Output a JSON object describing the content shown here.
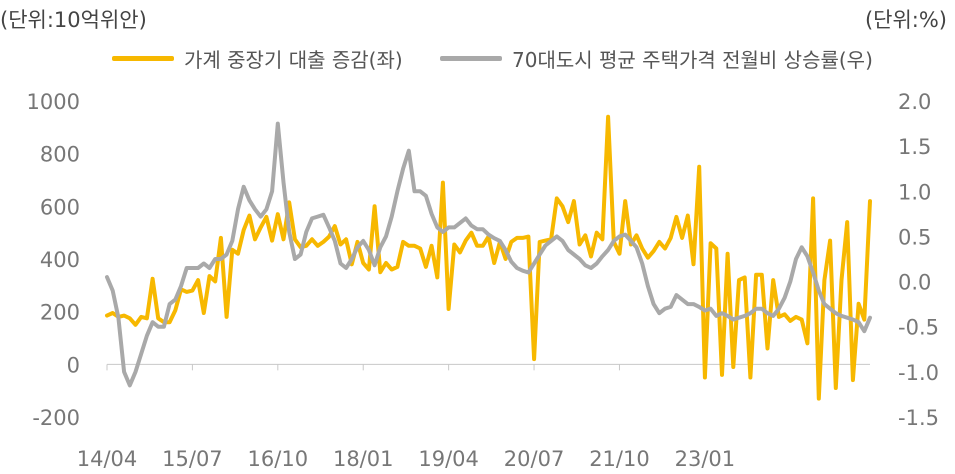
{
  "chart_data": {
    "type": "line",
    "unit_left": "(단위:10억위안)",
    "unit_right": "(단위:%)",
    "x_tick_labels": [
      "14/04",
      "15/07",
      "16/10",
      "18/01",
      "19/04",
      "20/07",
      "21/10",
      "23/01"
    ],
    "y_left": {
      "min": -200,
      "max": 1000,
      "ticks": [
        -200,
        0,
        200,
        400,
        600,
        800,
        1000
      ],
      "tick_labels": [
        "-200",
        "0",
        "200",
        "400",
        "600",
        "800",
        "1000"
      ]
    },
    "y_right": {
      "min": -1.5,
      "max": 2.0,
      "ticks": [
        -1.5,
        -1.0,
        -0.5,
        0.0,
        0.5,
        1.0,
        1.5,
        2.0
      ],
      "tick_labels": [
        "-1.5",
        "-1.0",
        "-0.5",
        "0.0",
        "0.5",
        "1.0",
        "1.5",
        "2.0"
      ]
    },
    "grid": false,
    "legend_position": "top",
    "series": [
      {
        "name": "가계 중장기 대출 증감(좌)",
        "axis": "left",
        "color": "#F7B800",
        "start": "2014-04",
        "values": [
          185,
          195,
          180,
          185,
          175,
          150,
          180,
          175,
          325,
          175,
          160,
          160,
          205,
          285,
          275,
          280,
          320,
          195,
          335,
          315,
          480,
          180,
          435,
          420,
          510,
          565,
          475,
          520,
          560,
          470,
          570,
          475,
          615,
          475,
          445,
          450,
          475,
          450,
          465,
          485,
          525,
          455,
          475,
          380,
          465,
          385,
          360,
          600,
          350,
          385,
          360,
          370,
          465,
          450,
          450,
          440,
          370,
          450,
          330,
          690,
          210,
          455,
          425,
          470,
          500,
          450,
          450,
          485,
          385,
          465,
          400,
          465,
          480,
          480,
          485,
          20,
          465,
          470,
          475,
          630,
          600,
          540,
          620,
          455,
          490,
          410,
          500,
          475,
          940,
          465,
          420,
          620,
          455,
          490,
          440,
          405,
          430,
          465,
          440,
          480,
          560,
          480,
          565,
          380,
          750,
          -50,
          460,
          440,
          -40,
          420,
          -10,
          320,
          330,
          -50,
          340,
          340,
          60,
          320,
          180,
          190,
          165,
          180,
          170,
          80,
          630,
          -130,
          320,
          470,
          -90,
          320,
          540,
          -60,
          230,
          170,
          620
        ]
      },
      {
        "name": "70대도시 평균 주택가격 전월비 상승률(우)",
        "axis": "right",
        "color": "#A9A9A9",
        "start": "2014-04",
        "values": [
          0.05,
          -0.1,
          -0.4,
          -1.0,
          -1.15,
          -1.0,
          -0.8,
          -0.6,
          -0.45,
          -0.5,
          -0.5,
          -0.25,
          -0.2,
          -0.05,
          0.15,
          0.15,
          0.15,
          0.2,
          0.15,
          0.25,
          0.25,
          0.3,
          0.45,
          0.8,
          1.05,
          0.9,
          0.8,
          0.72,
          0.8,
          1.0,
          1.75,
          1.1,
          0.55,
          0.25,
          0.3,
          0.55,
          0.7,
          0.72,
          0.74,
          0.6,
          0.45,
          0.2,
          0.15,
          0.25,
          0.38,
          0.45,
          0.35,
          0.18,
          0.38,
          0.5,
          0.72,
          1.0,
          1.25,
          1.45,
          1.0,
          1.0,
          0.95,
          0.75,
          0.6,
          0.55,
          0.6,
          0.6,
          0.65,
          0.7,
          0.62,
          0.58,
          0.58,
          0.52,
          0.48,
          0.45,
          0.35,
          0.22,
          0.15,
          0.12,
          0.1,
          0.2,
          0.3,
          0.4,
          0.45,
          0.5,
          0.45,
          0.35,
          0.3,
          0.25,
          0.18,
          0.15,
          0.2,
          0.28,
          0.35,
          0.45,
          0.5,
          0.52,
          0.45,
          0.38,
          0.2,
          -0.05,
          -0.25,
          -0.35,
          -0.3,
          -0.28,
          -0.15,
          -0.2,
          -0.25,
          -0.25,
          -0.28,
          -0.32,
          -0.3,
          -0.38,
          -0.35,
          -0.38,
          -0.42,
          -0.4,
          -0.38,
          -0.35,
          -0.3,
          -0.3,
          -0.35,
          -0.38,
          -0.3,
          -0.18,
          0.0,
          0.25,
          0.38,
          0.28,
          0.1,
          -0.1,
          -0.25,
          -0.3,
          -0.35,
          -0.38,
          -0.4,
          -0.42,
          -0.45,
          -0.55,
          -0.4
        ]
      }
    ]
  }
}
